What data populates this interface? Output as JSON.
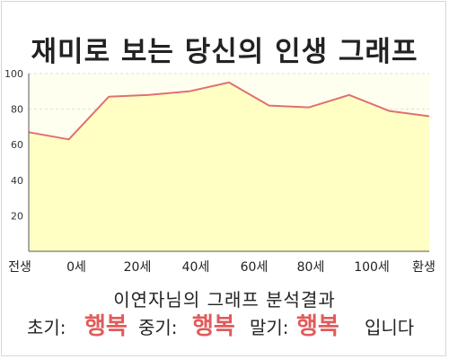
{
  "title": "재미로 보는 당신의 인생 그래프",
  "chart_data": {
    "type": "area",
    "x_labels": [
      "전생",
      "0세",
      "20세",
      "40세",
      "60세",
      "80세",
      "100세",
      "환생"
    ],
    "y_ticks": [
      20,
      40,
      60,
      80,
      100
    ],
    "ylim": [
      0,
      100
    ],
    "points": [
      67,
      63,
      87,
      88,
      90,
      95,
      82,
      81,
      88,
      79,
      76
    ],
    "grid": true,
    "colors": {
      "fill": "#ffffc4",
      "line": "#e07070",
      "plot_bg": "#fffff0",
      "grid": "#dddddd"
    }
  },
  "result": {
    "title": "이연자님의 그래프 분석결과",
    "early_label": "초기:",
    "early_value": "행복",
    "middle_label": "중기:",
    "middle_value": "행복",
    "late_label": "말기:",
    "late_value": "행복",
    "ending": "입니다"
  }
}
